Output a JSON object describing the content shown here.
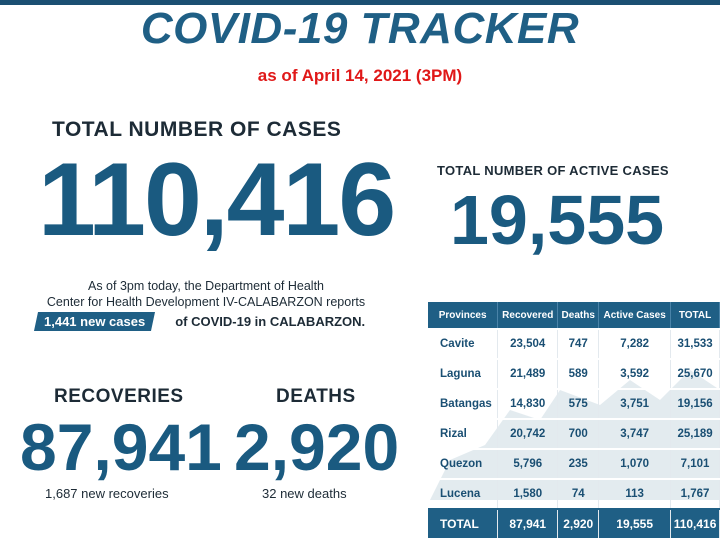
{
  "header": {
    "title": "COVID-19 TRACKER",
    "as_of": "as of April 14, 2021 (3PM)"
  },
  "total_cases": {
    "label": "TOTAL NUMBER OF CASES",
    "value": "110,416"
  },
  "active_cases": {
    "label": "TOTAL NUMBER OF ACTIVE CASES",
    "value": "19,555"
  },
  "report": {
    "line1": "As of 3pm today, the Department of Health",
    "line2": "Center for Health Development IV-CALABARZON reports",
    "new_cases": "1,441 new cases",
    "tail": "of COVID-19 in CALABARZON."
  },
  "recoveries": {
    "label": "RECOVERIES",
    "value": "87,941",
    "new": "1,687 new recoveries"
  },
  "deaths": {
    "label": "DEATHS",
    "value": "2,920",
    "new": "32 new deaths"
  },
  "table": {
    "headers": [
      "Provinces",
      "Recovered",
      "Deaths",
      "Active Cases",
      "TOTAL"
    ],
    "rows": [
      [
        "Cavite",
        "23,504",
        "747",
        "7,282",
        "31,533"
      ],
      [
        "Laguna",
        "21,489",
        "589",
        "3,592",
        "25,670"
      ],
      [
        "Batangas",
        "14,830",
        "575",
        "3,751",
        "19,156"
      ],
      [
        "Rizal",
        "20,742",
        "700",
        "3,747",
        "25,189"
      ],
      [
        "Quezon",
        "5,796",
        "235",
        "1,070",
        "7,101"
      ],
      [
        "Lucena",
        "1,580",
        "74",
        "113",
        "1,767"
      ]
    ],
    "total": [
      "TOTAL",
      "87,941",
      "2,920",
      "19,555",
      "110,416"
    ]
  },
  "colors": {
    "brand_blue": "#1a5a80",
    "header_blue": "#1f5f85",
    "accent_red": "#e01818"
  }
}
